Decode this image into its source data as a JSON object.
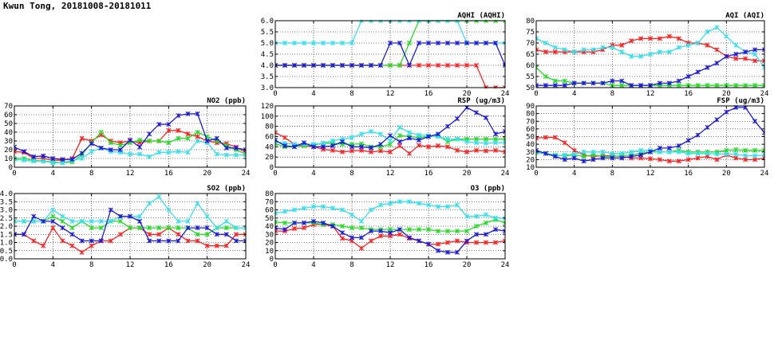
{
  "page": {
    "title": "Kwun Tong, 20181008-20181011"
  },
  "colors": {
    "red": "#ff2020",
    "green": "#22dd22",
    "blue": "#1a1ae0",
    "cyan": "#33e0ee"
  },
  "chart_data": [
    {
      "id": "aqhi",
      "type": "line",
      "title": "AQHI (AQHI)",
      "xlim": [
        0,
        24
      ],
      "ylim": [
        3.0,
        6.0
      ],
      "xticks": [
        0,
        4,
        8,
        12,
        16,
        20,
        24
      ],
      "yticks": [
        3.0,
        3.5,
        4.0,
        4.5,
        5.0,
        5.5,
        6.0
      ],
      "ytick_labels": [
        "3.0",
        "3.5",
        "4.0",
        "4.5",
        "5.0",
        "5.5",
        "6.0"
      ],
      "series": [
        {
          "name": "red",
          "color": "#ff2020",
          "values": [
            4,
            4,
            4,
            4,
            4,
            4,
            4,
            4,
            4,
            4,
            4,
            4,
            4,
            4,
            4,
            4,
            4,
            4,
            4,
            4,
            4,
            4,
            3,
            3,
            3
          ]
        },
        {
          "name": "green",
          "color": "#22dd22",
          "values": [
            4,
            4,
            4,
            4,
            4,
            4,
            4,
            4,
            4,
            4,
            4,
            4,
            4,
            4,
            5,
            6,
            6,
            6,
            6,
            6,
            6,
            6,
            6,
            6,
            6
          ]
        },
        {
          "name": "cyan",
          "color": "#33e0ee",
          "values": [
            5,
            5,
            5,
            5,
            5,
            5,
            5,
            5,
            5,
            6,
            6,
            6,
            6,
            6,
            6,
            6,
            6,
            6,
            6,
            6,
            5,
            5,
            5,
            5,
            5
          ]
        },
        {
          "name": "blue",
          "color": "#1a1ae0",
          "values": [
            4,
            4,
            4,
            4,
            4,
            4,
            4,
            4,
            4,
            4,
            4,
            4,
            5,
            5,
            4,
            5,
            5,
            5,
            5,
            5,
            5,
            5,
            5,
            5,
            4
          ]
        }
      ]
    },
    {
      "id": "aqi",
      "type": "line",
      "title": "AQI (AQI)",
      "xlim": [
        0,
        24
      ],
      "ylim": [
        50,
        80
      ],
      "xticks": [
        0,
        4,
        8,
        12,
        16,
        20,
        24
      ],
      "yticks": [
        50,
        55,
        60,
        65,
        70,
        75,
        80
      ],
      "ytick_labels": [
        "50",
        "55",
        "60",
        "65",
        "70",
        "75",
        "80"
      ],
      "series": [
        {
          "name": "red",
          "color": "#ff2020",
          "values": [
            67,
            66,
            66,
            66,
            66,
            66,
            66,
            67,
            69,
            69,
            71,
            72,
            72,
            72,
            73,
            72,
            70,
            70,
            69,
            67,
            64,
            63,
            63,
            62,
            62
          ]
        },
        {
          "name": "green",
          "color": "#22dd22",
          "values": [
            59,
            55,
            53,
            53,
            52,
            52,
            52,
            52,
            51,
            51,
            51,
            51,
            51,
            51,
            51,
            51,
            51,
            51,
            51,
            51,
            51,
            51,
            51,
            51,
            51
          ]
        },
        {
          "name": "cyan",
          "color": "#33e0ee",
          "values": [
            72,
            70,
            68,
            67,
            66,
            67,
            67,
            68,
            68,
            66,
            64,
            64,
            65,
            66,
            66,
            68,
            69,
            70,
            75,
            77,
            73,
            69,
            66,
            65,
            59
          ]
        },
        {
          "name": "blue",
          "color": "#1a1ae0",
          "values": [
            51,
            51,
            51,
            51,
            52,
            52,
            52,
            52,
            53,
            53,
            51,
            51,
            51,
            52,
            52,
            53,
            55,
            57,
            59,
            61,
            64,
            65,
            66,
            67,
            67
          ]
        }
      ]
    },
    {
      "id": "no2",
      "type": "line",
      "title": "NO2 (ppb)",
      "xlim": [
        0,
        24
      ],
      "ylim": [
        0,
        70
      ],
      "xticks": [
        0,
        4,
        8,
        12,
        16,
        20,
        24
      ],
      "yticks": [
        0,
        10,
        20,
        30,
        40,
        50,
        60,
        70
      ],
      "ytick_labels": [
        "0",
        "10",
        "20",
        "30",
        "40",
        "50",
        "60",
        "70"
      ],
      "series": [
        {
          "name": "red",
          "color": "#ff2020",
          "values": [
            18,
            17,
            10,
            10,
            8,
            8,
            10,
            33,
            30,
            37,
            30,
            28,
            30,
            28,
            30,
            30,
            42,
            42,
            38,
            35,
            30,
            28,
            27,
            23,
            17
          ]
        },
        {
          "name": "green",
          "color": "#22dd22",
          "values": [
            10,
            10,
            8,
            7,
            6,
            5,
            6,
            14,
            28,
            40,
            28,
            25,
            28,
            31,
            30,
            30,
            28,
            33,
            33,
            40,
            35,
            30,
            25,
            20,
            15
          ]
        },
        {
          "name": "cyan",
          "color": "#33e0ee",
          "values": [
            9,
            8,
            7,
            7,
            5,
            5,
            8,
            10,
            18,
            22,
            18,
            17,
            15,
            15,
            12,
            17,
            17,
            18,
            17,
            30,
            28,
            15,
            14,
            14,
            14
          ]
        },
        {
          "name": "blue",
          "color": "#1a1ae0",
          "values": [
            23,
            18,
            12,
            13,
            10,
            9,
            9,
            16,
            27,
            22,
            20,
            20,
            31,
            23,
            38,
            49,
            49,
            59,
            61,
            61,
            30,
            33,
            22,
            22,
            20
          ]
        }
      ]
    },
    {
      "id": "rsp",
      "type": "line",
      "title": "RSP (ug/m3)",
      "xlim": [
        0,
        24
      ],
      "ylim": [
        0,
        120
      ],
      "xticks": [
        0,
        4,
        8,
        12,
        16,
        20,
        24
      ],
      "yticks": [
        0,
        20,
        40,
        60,
        80,
        100,
        120
      ],
      "ytick_labels": [
        "0",
        "20",
        "40",
        "60",
        "80",
        "100",
        "120"
      ],
      "series": [
        {
          "name": "red",
          "color": "#ff2020",
          "values": [
            68,
            58,
            45,
            42,
            40,
            35,
            33,
            30,
            32,
            33,
            30,
            32,
            30,
            42,
            27,
            43,
            40,
            42,
            40,
            33,
            30,
            33,
            32,
            33,
            30
          ]
        },
        {
          "name": "green",
          "color": "#22dd22",
          "values": [
            46,
            40,
            40,
            42,
            43,
            47,
            47,
            45,
            45,
            46,
            40,
            40,
            45,
            62,
            60,
            58,
            60,
            62,
            50,
            55,
            55,
            55,
            55,
            55,
            55
          ]
        },
        {
          "name": "cyan",
          "color": "#33e0ee",
          "values": [
            50,
            47,
            45,
            45,
            45,
            47,
            52,
            55,
            58,
            65,
            70,
            65,
            52,
            78,
            68,
            63,
            62,
            60,
            55,
            55,
            50,
            48,
            47,
            48,
            48
          ]
        },
        {
          "name": "blue",
          "color": "#1a1ae0",
          "values": [
            53,
            42,
            40,
            48,
            40,
            40,
            42,
            50,
            40,
            40,
            38,
            45,
            62,
            50,
            57,
            53,
            60,
            65,
            80,
            95,
            117,
            107,
            97,
            65,
            70
          ]
        }
      ]
    },
    {
      "id": "fsp",
      "type": "line",
      "title": "FSP (ug/m3)",
      "xlim": [
        0,
        24
      ],
      "ylim": [
        10,
        90
      ],
      "xticks": [
        0,
        4,
        8,
        12,
        16,
        20,
        24
      ],
      "yticks": [
        10,
        20,
        30,
        40,
        50,
        60,
        70,
        80,
        90
      ],
      "ytick_labels": [
        "10",
        "20",
        "30",
        "40",
        "50",
        "60",
        "70",
        "80",
        "90"
      ],
      "series": [
        {
          "name": "red",
          "color": "#ff2020",
          "values": [
            48,
            49,
            49,
            42,
            32,
            26,
            24,
            25,
            25,
            24,
            22,
            22,
            21,
            20,
            18,
            18,
            20,
            22,
            24,
            20,
            26,
            22,
            20,
            20,
            22
          ]
        },
        {
          "name": "green",
          "color": "#22dd22",
          "values": [
            29,
            28,
            26,
            25,
            26,
            24,
            26,
            24,
            24,
            25,
            26,
            28,
            30,
            30,
            30,
            32,
            30,
            30,
            30,
            30,
            32,
            33,
            32,
            32,
            32
          ]
        },
        {
          "name": "cyan",
          "color": "#33e0ee",
          "values": [
            30,
            28,
            25,
            26,
            27,
            30,
            30,
            30,
            28,
            28,
            30,
            32,
            32,
            30,
            30,
            30,
            28,
            28,
            28,
            27,
            27,
            27,
            25,
            25,
            26
          ]
        },
        {
          "name": "blue",
          "color": "#1a1ae0",
          "values": [
            32,
            28,
            24,
            20,
            22,
            18,
            20,
            22,
            22,
            22,
            24,
            26,
            30,
            35,
            35,
            38,
            45,
            52,
            62,
            72,
            82,
            88,
            88,
            70,
            55
          ]
        }
      ]
    },
    {
      "id": "so2",
      "type": "line",
      "title": "SO2 (ppb)",
      "xlim": [
        0,
        24
      ],
      "ylim": [
        0,
        4.0
      ],
      "xticks": [
        0,
        4,
        8,
        12,
        16,
        20,
        24
      ],
      "yticks": [
        0,
        0.5,
        1.0,
        1.5,
        2.0,
        2.5,
        3.0,
        3.5,
        4.0
      ],
      "ytick_labels": [
        "0.0",
        "0.5",
        "1.0",
        "1.5",
        "2.0",
        "2.5",
        "3.0",
        "3.5",
        "4.0"
      ],
      "series": [
        {
          "name": "red",
          "color": "#ff2020",
          "values": [
            1.5,
            1.5,
            1.1,
            0.8,
            1.9,
            1.1,
            0.8,
            0.4,
            0.8,
            1.1,
            1.1,
            1.5,
            1.9,
            1.9,
            1.5,
            1.5,
            1.9,
            1.5,
            1.1,
            1.1,
            0.8,
            0.8,
            0.8,
            1.5,
            1.5
          ]
        },
        {
          "name": "green",
          "color": "#22dd22",
          "values": [
            2.3,
            2.3,
            2.3,
            2.3,
            2.6,
            2.3,
            1.9,
            2.3,
            1.9,
            1.9,
            2.3,
            2.3,
            1.9,
            1.9,
            1.9,
            1.9,
            1.9,
            1.9,
            1.9,
            1.5,
            1.5,
            1.9,
            1.9,
            1.9,
            1.9
          ]
        },
        {
          "name": "cyan",
          "color": "#33e0ee",
          "values": [
            2.3,
            2.3,
            2.3,
            2.3,
            3.0,
            2.6,
            2.3,
            2.3,
            2.3,
            2.3,
            2.3,
            2.6,
            2.6,
            2.6,
            3.4,
            3.8,
            3.0,
            2.3,
            2.3,
            3.4,
            2.6,
            1.9,
            2.3,
            1.9,
            1.9
          ]
        },
        {
          "name": "blue",
          "color": "#1a1ae0",
          "values": [
            1.5,
            1.5,
            2.6,
            2.3,
            2.3,
            1.9,
            1.5,
            1.1,
            1.1,
            1.1,
            3.0,
            2.6,
            2.6,
            2.3,
            1.1,
            1.1,
            1.1,
            1.1,
            1.9,
            1.9,
            1.9,
            1.5,
            1.5,
            1.1,
            1.1
          ]
        }
      ]
    },
    {
      "id": "o3",
      "type": "line",
      "title": "O3 (ppb)",
      "xlim": [
        0,
        24
      ],
      "ylim": [
        0,
        80
      ],
      "xticks": [
        0,
        4,
        8,
        12,
        16,
        20,
        24
      ],
      "yticks": [
        0,
        10,
        20,
        30,
        40,
        50,
        60,
        70,
        80
      ],
      "ytick_labels": [
        "0",
        "10",
        "20",
        "30",
        "40",
        "50",
        "60",
        "70",
        "80"
      ],
      "series": [
        {
          "name": "red",
          "color": "#ff2020",
          "values": [
            34,
            34,
            37,
            38,
            42,
            42,
            40,
            25,
            22,
            13,
            22,
            28,
            28,
            30,
            25,
            22,
            18,
            18,
            20,
            22,
            20,
            20,
            20,
            20,
            22
          ]
        },
        {
          "name": "green",
          "color": "#22dd22",
          "values": [
            45,
            44,
            44,
            44,
            44,
            42,
            42,
            40,
            38,
            38,
            36,
            36,
            36,
            36,
            36,
            36,
            36,
            34,
            34,
            34,
            34,
            40,
            44,
            48,
            44
          ]
        },
        {
          "name": "cyan",
          "color": "#33e0ee",
          "values": [
            56,
            58,
            60,
            62,
            64,
            64,
            62,
            60,
            54,
            46,
            60,
            66,
            68,
            70,
            70,
            68,
            66,
            64,
            64,
            66,
            52,
            52,
            54,
            50,
            50
          ]
        },
        {
          "name": "blue",
          "color": "#1a1ae0",
          "values": [
            38,
            36,
            44,
            44,
            46,
            44,
            40,
            32,
            26,
            26,
            34,
            34,
            32,
            36,
            26,
            22,
            18,
            10,
            8,
            8,
            22,
            30,
            30,
            36,
            34
          ]
        }
      ]
    }
  ]
}
